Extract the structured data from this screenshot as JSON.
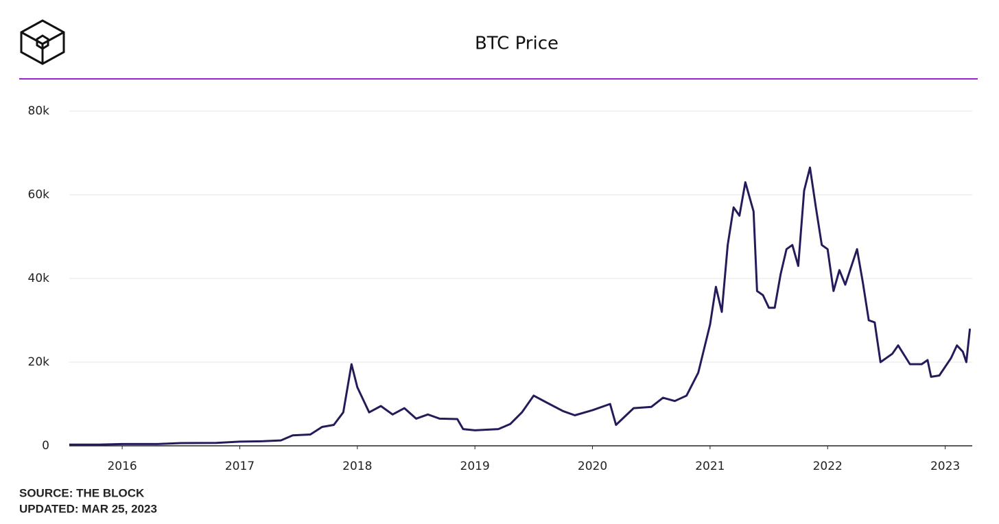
{
  "chart_data": {
    "type": "line",
    "title": "BTC Price",
    "source": "SOURCE: THE BLOCK",
    "updated": "UPDATED: MAR 25, 2023",
    "xlim": [
      2015.55,
      2023.23
    ],
    "xticks": [
      2016,
      2017,
      2018,
      2019,
      2020,
      2021,
      2022,
      2023
    ],
    "ylim": [
      0,
      80000
    ],
    "yticks": [
      0,
      {
        "value": 20000,
        "label": "20k"
      },
      {
        "value": 40000,
        "label": "40k"
      },
      {
        "value": 60000,
        "label": "60k"
      },
      {
        "value": 80000,
        "label": "80k"
      }
    ],
    "grid": true,
    "series": [
      {
        "color": "#241c5a",
        "x": [
          2015.55,
          2015.8,
          2016.0,
          2016.3,
          2016.5,
          2016.8,
          2017.0,
          2017.2,
          2017.35,
          2017.45,
          2017.6,
          2017.7,
          2017.8,
          2017.88,
          2017.95,
          2018.0,
          2018.05,
          2018.1,
          2018.2,
          2018.3,
          2018.4,
          2018.5,
          2018.6,
          2018.7,
          2018.85,
          2018.9,
          2019.0,
          2019.2,
          2019.3,
          2019.4,
          2019.5,
          2019.6,
          2019.75,
          2019.85,
          2020.0,
          2020.15,
          2020.2,
          2020.35,
          2020.5,
          2020.6,
          2020.7,
          2020.8,
          2020.9,
          2021.0,
          2021.05,
          2021.1,
          2021.15,
          2021.2,
          2021.25,
          2021.3,
          2021.37,
          2021.4,
          2021.45,
          2021.5,
          2021.55,
          2021.6,
          2021.65,
          2021.7,
          2021.75,
          2021.8,
          2021.85,
          2021.9,
          2021.95,
          2022.0,
          2022.05,
          2022.1,
          2022.15,
          2022.25,
          2022.3,
          2022.35,
          2022.4,
          2022.45,
          2022.55,
          2022.6,
          2022.7,
          2022.8,
          2022.85,
          2022.88,
          2022.95,
          2023.05,
          2023.1,
          2023.15,
          2023.18,
          2023.21
        ],
        "values": [
          280,
          300,
          430,
          430,
          650,
          700,
          1000,
          1100,
          1300,
          2500,
          2700,
          4500,
          5000,
          8000,
          19500,
          14000,
          11000,
          8000,
          9500,
          7500,
          9000,
          6500,
          7500,
          6500,
          6400,
          4000,
          3700,
          4000,
          5200,
          8000,
          12000,
          10500,
          8300,
          7300,
          8500,
          10000,
          5000,
          9000,
          9300,
          11500,
          10700,
          12000,
          17500,
          29000,
          38000,
          32000,
          48000,
          57000,
          55000,
          63000,
          56000,
          37000,
          36000,
          33000,
          33000,
          41000,
          47000,
          48000,
          43000,
          61000,
          66500,
          57000,
          48000,
          47000,
          37000,
          42000,
          38500,
          47000,
          39000,
          30000,
          29500,
          20000,
          22000,
          24000,
          19500,
          19500,
          20500,
          16500,
          16800,
          21000,
          24000,
          22500,
          20000,
          28000
        ]
      }
    ]
  }
}
